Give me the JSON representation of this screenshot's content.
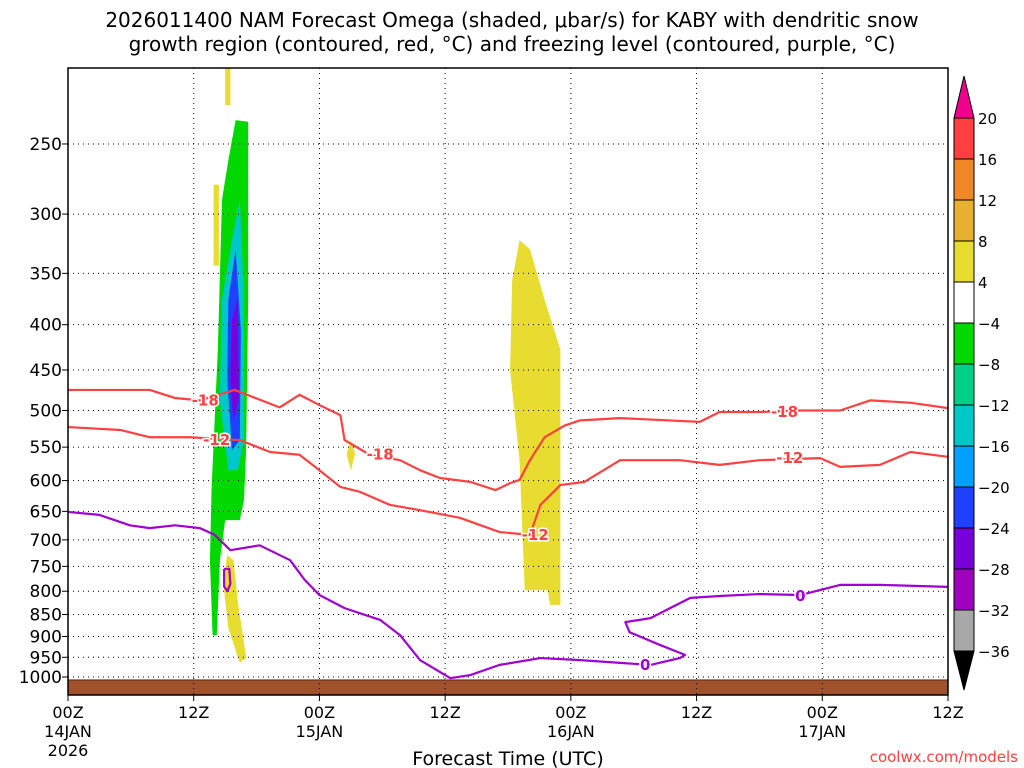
{
  "chart_data": {
    "type": "heatmap",
    "title_line1": "2026011400 NAM Forecast Omega (shaded, μbar/s) for KABY with dendritic snow",
    "title_line2": "growth region (contoured, red, °C) and freezing level (contoured, purple, °C)",
    "xlabel": "Forecast Time (UTC)",
    "ylabel": "",
    "credit": "coolwx.com/models",
    "x_unit": "hours since 00Z 14JAN 2026",
    "xlim": [
      0,
      84
    ],
    "ylim_hPa": [
      1048,
      205
    ],
    "y_scale": "log",
    "grid": true,
    "x_ticks": [
      {
        "hour": 0,
        "lines": [
          "00Z",
          "14JAN",
          "2026"
        ]
      },
      {
        "hour": 12,
        "lines": [
          "12Z"
        ]
      },
      {
        "hour": 24,
        "lines": [
          "00Z",
          "15JAN"
        ]
      },
      {
        "hour": 36,
        "lines": [
          "12Z"
        ]
      },
      {
        "hour": 48,
        "lines": [
          "00Z",
          "16JAN"
        ]
      },
      {
        "hour": 60,
        "lines": [
          "12Z"
        ]
      },
      {
        "hour": 72,
        "lines": [
          "00Z",
          "17JAN"
        ]
      },
      {
        "hour": 84,
        "lines": [
          "12Z"
        ]
      }
    ],
    "y_ticks": [
      "250",
      "300",
      "350",
      "400",
      "450",
      "500",
      "550",
      "600",
      "650",
      "700",
      "750",
      "800",
      "850",
      "900",
      "950",
      "1000"
    ],
    "colorbar": {
      "labels": [
        "20",
        "16",
        "12",
        "8",
        "4",
        "-4",
        "-8",
        "-12",
        "-16",
        "-20",
        "-24",
        "-28",
        "-32",
        "-36"
      ],
      "over_color": "#f0008c",
      "colors": [
        "#ff4040",
        "#f08828",
        "#e8b030",
        "#e8dc30",
        "#ffffff",
        "#00d800",
        "#00d088",
        "#00c8c8",
        "#00a0ff",
        "#2040ff",
        "#7800d8",
        "#a000c0",
        "#a8a8a8"
      ],
      "under_color": "#000000"
    },
    "terrain": {
      "color": "#a0522d",
      "surface_hPa": 1008
    },
    "omega_regions": [
      {
        "range": "-8 to -4",
        "color": "#00d800",
        "points": [
          [
            16.0,
            235
          ],
          [
            17.2,
            236
          ],
          [
            17.2,
            375
          ],
          [
            17.0,
            554
          ],
          [
            16.8,
            631
          ],
          [
            16.4,
            665
          ],
          [
            15.0,
            665
          ],
          [
            14.5,
            738
          ],
          [
            14.2,
            897
          ],
          [
            13.8,
            897
          ],
          [
            13.55,
            738
          ],
          [
            13.7,
            615
          ],
          [
            14.3,
            427
          ],
          [
            14.7,
            289
          ],
          [
            15.3,
            261
          ]
        ]
      },
      {
        "range": "-16 to -12",
        "color": "#00c8c8",
        "points": [
          [
            14.7,
            375
          ],
          [
            15.65,
            321
          ],
          [
            16.4,
            289
          ],
          [
            16.8,
            375
          ],
          [
            16.8,
            540
          ],
          [
            16.2,
            584
          ],
          [
            15.3,
            584
          ],
          [
            14.5,
            487
          ]
        ]
      },
      {
        "range": "-24 to -20",
        "color": "#2040ff",
        "points": [
          [
            15.3,
            375
          ],
          [
            16.0,
            329
          ],
          [
            16.5,
            406
          ],
          [
            16.4,
            540
          ],
          [
            15.65,
            554
          ],
          [
            15.2,
            462
          ]
        ]
      },
      {
        "range": "-28 to -24",
        "color": "#7800d8",
        "points": [
          [
            15.65,
            395
          ],
          [
            16.2,
            375
          ],
          [
            16.3,
            487
          ],
          [
            15.8,
            513
          ],
          [
            15.5,
            462
          ]
        ]
      },
      {
        "range": "4 to 8",
        "color": "#e8dc30",
        "points": [
          [
            43.1,
            321
          ],
          [
            44.1,
            329
          ],
          [
            45.5,
            375
          ],
          [
            47.0,
            427
          ],
          [
            47.0,
            829
          ],
          [
            46.0,
            829
          ],
          [
            45.8,
            798
          ],
          [
            43.6,
            798
          ],
          [
            43.1,
            569
          ],
          [
            42.2,
            450
          ],
          [
            42.4,
            356
          ]
        ]
      },
      {
        "range": "4 to 8",
        "color": "#e8dc30",
        "points": [
          [
            15.0,
            205
          ],
          [
            15.5,
            205
          ],
          [
            15.5,
            226
          ],
          [
            15.0,
            226
          ]
        ]
      },
      {
        "range": "4 to 8",
        "color": "#e8dc30",
        "points": [
          [
            13.9,
            278
          ],
          [
            14.4,
            278
          ],
          [
            14.4,
            343
          ],
          [
            13.9,
            343
          ]
        ]
      },
      {
        "range": "4 to 8",
        "color": "#e8dc30",
        "points": [
          [
            27.0,
            540
          ],
          [
            27.4,
            560
          ],
          [
            27.0,
            584
          ],
          [
            26.6,
            560
          ]
        ]
      },
      {
        "range": "4 to 8",
        "color": "#e8dc30",
        "points": [
          [
            15.2,
            728
          ],
          [
            15.8,
            738
          ],
          [
            16.2,
            820
          ],
          [
            17.0,
            950
          ],
          [
            16.4,
            964
          ],
          [
            15.3,
            880
          ],
          [
            14.8,
            780
          ]
        ]
      }
    ],
    "contours": [
      {
        "name": "dgz-minus18",
        "color": "#ff4040",
        "labels": [
          {
            "text": "-18",
            "at": [
              13.1,
              487
            ]
          },
          {
            "text": "-18",
            "at": [
              29.8,
              561
            ]
          },
          {
            "text": "-18",
            "at": [
              68.4,
              502
            ]
          }
        ],
        "points": [
          [
            0,
            474
          ],
          [
            5,
            474
          ],
          [
            7.8,
            474
          ],
          [
            10.2,
            484
          ],
          [
            12.6,
            487
          ],
          [
            15.9,
            474
          ],
          [
            20.2,
            496
          ],
          [
            22.1,
            480
          ],
          [
            24,
            493
          ],
          [
            26,
            506
          ],
          [
            26.4,
            540
          ],
          [
            28.8,
            561
          ],
          [
            31.7,
            569
          ],
          [
            33.6,
            584
          ],
          [
            35.5,
            596
          ],
          [
            38.4,
            602
          ],
          [
            40.8,
            615
          ],
          [
            42.2,
            604
          ],
          [
            43.1,
            599
          ],
          [
            44.1,
            569
          ],
          [
            45.5,
            536
          ],
          [
            47.4,
            520
          ],
          [
            48.9,
            513
          ],
          [
            52.7,
            510
          ],
          [
            60.3,
            515
          ],
          [
            62.2,
            502
          ],
          [
            66,
            502
          ],
          [
            69.9,
            500
          ],
          [
            73.7,
            500
          ],
          [
            76.6,
            487
          ],
          [
            80.4,
            490
          ],
          [
            84,
            497
          ]
        ]
      },
      {
        "name": "dgz-minus12",
        "color": "#ff4040",
        "labels": [
          {
            "text": "-12",
            "at": [
              14.2,
              540
            ]
          },
          {
            "text": "-12",
            "at": [
              44.6,
              691
            ]
          },
          {
            "text": "-12",
            "at": [
              68.9,
              566
            ]
          }
        ],
        "points": [
          [
            0,
            522
          ],
          [
            5,
            526
          ],
          [
            7.8,
            536
          ],
          [
            11.6,
            536
          ],
          [
            16.4,
            540
          ],
          [
            19.3,
            557
          ],
          [
            22.1,
            561
          ],
          [
            24,
            584
          ],
          [
            26,
            610
          ],
          [
            27.9,
            618
          ],
          [
            30.7,
            639
          ],
          [
            33.6,
            648
          ],
          [
            37.4,
            661
          ],
          [
            41.2,
            686
          ],
          [
            44.1,
            691
          ],
          [
            45.1,
            639
          ],
          [
            47,
            607
          ],
          [
            49.3,
            602
          ],
          [
            52.7,
            569
          ],
          [
            58.4,
            569
          ],
          [
            62.2,
            576
          ],
          [
            66,
            569
          ],
          [
            71.8,
            566
          ],
          [
            73.7,
            579
          ],
          [
            77.5,
            576
          ],
          [
            80.4,
            557
          ],
          [
            84,
            564
          ]
        ]
      },
      {
        "name": "freezing-level-0",
        "color": "#a000d0",
        "labels": [
          {
            "text": "0",
            "at": [
              55.1,
              969
            ]
          },
          {
            "text": "0",
            "at": [
              69.9,
              810
            ]
          }
        ],
        "points": [
          [
            0,
            651
          ],
          [
            3,
            656
          ],
          [
            5.9,
            674
          ],
          [
            7.8,
            679
          ],
          [
            10.2,
            674
          ],
          [
            12.6,
            679
          ],
          [
            14,
            691
          ],
          [
            15.5,
            719
          ],
          [
            18.3,
            710
          ],
          [
            21.2,
            738
          ],
          [
            22.6,
            777
          ],
          [
            24,
            808
          ],
          [
            26.4,
            836
          ],
          [
            29.8,
            862
          ],
          [
            31.7,
            897
          ],
          [
            33.6,
            957
          ],
          [
            36.5,
            1003
          ],
          [
            38.4,
            995
          ],
          [
            41.2,
            969
          ],
          [
            45.1,
            952
          ],
          [
            48.9,
            957
          ],
          [
            52.7,
            964
          ],
          [
            55.6,
            969
          ],
          [
            58.4,
            952
          ],
          [
            58.9,
            944
          ],
          [
            56.5,
            920
          ],
          [
            53.6,
            890
          ],
          [
            53.2,
            867
          ],
          [
            55.6,
            858
          ],
          [
            59.4,
            814
          ],
          [
            62.2,
            810
          ],
          [
            66,
            806
          ],
          [
            69.9,
            808
          ],
          [
            73.7,
            787
          ],
          [
            77.5,
            787
          ],
          [
            84,
            791
          ]
        ]
      },
      {
        "name": "freezing-level-0-small",
        "color": "#a000d0",
        "labels": [],
        "points": [
          [
            14.9,
            755
          ],
          [
            15.4,
            755
          ],
          [
            15.5,
            785
          ],
          [
            15.2,
            800
          ],
          [
            14.9,
            790
          ],
          [
            14.9,
            755
          ]
        ]
      }
    ]
  }
}
